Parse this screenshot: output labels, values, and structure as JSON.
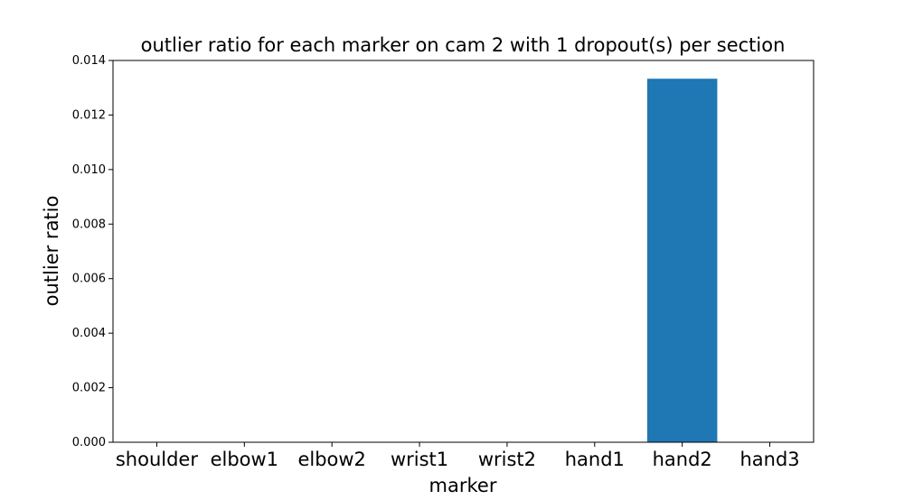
{
  "chart_data": {
    "type": "bar",
    "title": "outlier ratio for each marker on cam 2 with 1 dropout(s) per section",
    "xlabel": "marker",
    "ylabel": "outlier ratio",
    "categories": [
      "shoulder",
      "elbow1",
      "elbow2",
      "wrist1",
      "wrist2",
      "hand1",
      "hand2",
      "hand3"
    ],
    "values": [
      0,
      0,
      0,
      0,
      0,
      0,
      0.01333,
      0
    ],
    "ylim": [
      0,
      0.014
    ],
    "yticks": [
      "0.000",
      "0.002",
      "0.004",
      "0.006",
      "0.008",
      "0.010",
      "0.012",
      "0.014"
    ],
    "grid": false,
    "legend": "none",
    "bar_color": "#1f77b4"
  }
}
